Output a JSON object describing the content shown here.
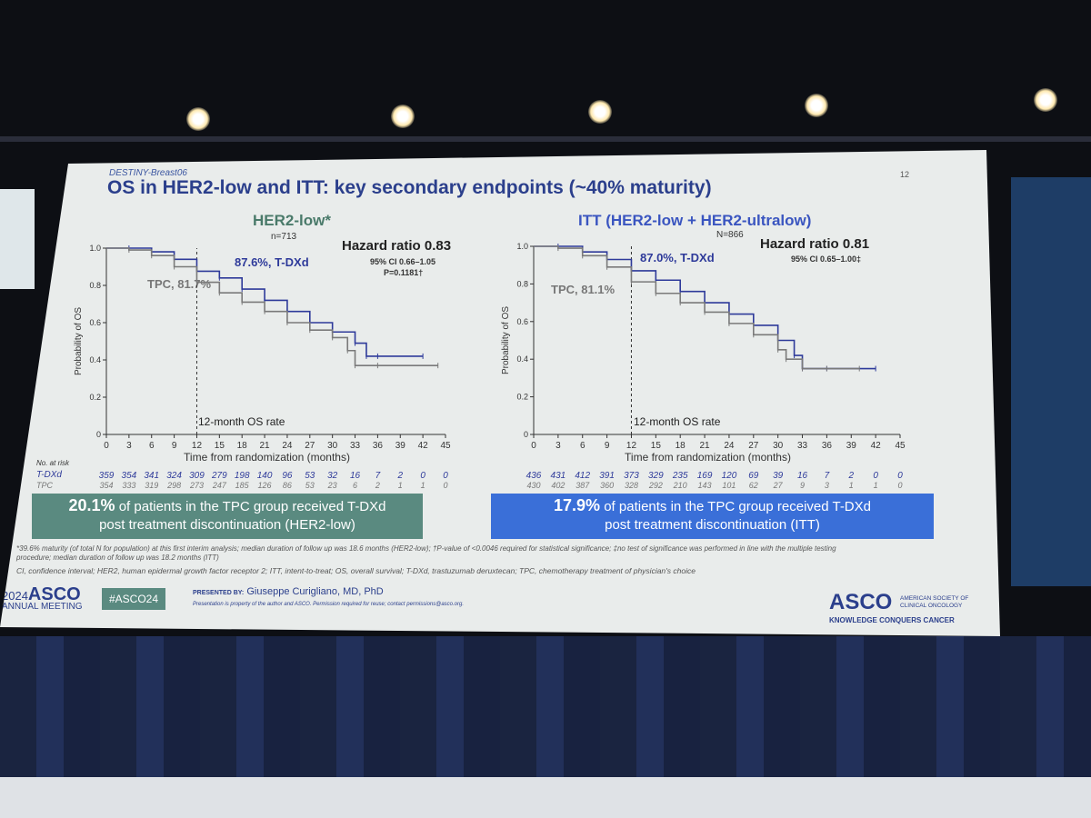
{
  "slide": {
    "logo": "DESTINY-Breast06",
    "page_number": "12",
    "title": "OS in HER2-low and ITT: key secondary endpoints (~40% maturity)",
    "left_panel": {
      "title": "HER2-low*",
      "n": "n=713",
      "hazard_ratio": "Hazard ratio 0.83",
      "ci": "95% CI 0.66–1.05",
      "p": "P=0.1181†",
      "tdxd_label": "87.6%, T-DXd",
      "tpc_label": "TPC, 81.7%",
      "landmark_label": "12-month OS rate",
      "risk_header": "No. at risk",
      "risk_tdxd_label": "T-DXd",
      "risk_tpc_label": "TPC",
      "risk_tdxd": [
        "359",
        "354",
        "341",
        "324",
        "309",
        "279",
        "198",
        "140",
        "96",
        "53",
        "32",
        "16",
        "7",
        "2",
        "0",
        "0"
      ],
      "risk_tpc": [
        "354",
        "333",
        "319",
        "298",
        "273",
        "247",
        "185",
        "126",
        "86",
        "53",
        "23",
        "6",
        "2",
        "1",
        "1",
        "0"
      ],
      "box_pct": "20.1%",
      "box_text1": " of patients in the TPC group received T-DXd",
      "box_text2": "post treatment discontinuation (HER2-low)",
      "box_color": "#5a8a80"
    },
    "right_panel": {
      "title": "ITT (HER2-low + HER2-ultralow)",
      "n": "N=866",
      "hazard_ratio": "Hazard ratio 0.81",
      "ci": "95% CI 0.65–1.00‡",
      "tdxd_label": "87.0%, T-DXd",
      "tpc_label": "TPC, 81.1%",
      "landmark_label": "12-month OS rate",
      "risk_tdxd": [
        "436",
        "431",
        "412",
        "391",
        "373",
        "329",
        "235",
        "169",
        "120",
        "69",
        "39",
        "16",
        "7",
        "2",
        "0",
        "0"
      ],
      "risk_tpc": [
        "430",
        "402",
        "387",
        "360",
        "328",
        "292",
        "210",
        "143",
        "101",
        "62",
        "27",
        "9",
        "3",
        "1",
        "1",
        "0"
      ],
      "box_pct": "17.9%",
      "box_text1": " of patients in the TPC group received T-DXd",
      "box_text2": "post treatment discontinuation (ITT)",
      "box_color": "#3a6fd8"
    },
    "footnote1": "*39.6% maturity (of total N for population) at this first interim analysis; median duration of follow up was 18.6 months (HER2-low); †P-value of <0.0046 required for statistical significance; ‡no test of significance was performed in line with the multiple testing",
    "footnote2": "procedure; median duration of follow up was 18.2 months (ITT)",
    "footnote3": "CI, confidence interval; HER2, human epidermal growth factor receptor 2; ITT, intent-to-treat; OS, overall survival; T-DXd, trastuzumab deruxtecan; TPC, chemotherapy treatment of physician's choice",
    "meeting_year": "2024",
    "meeting_name": "ASCO",
    "meeting_sub": "ANNUAL MEETING",
    "hashtag": "#ASCO24",
    "presented_by_label": "PRESENTED BY:",
    "presenter": "Giuseppe Curigliano, MD, PhD",
    "disclaimer": "Presentation is property of the author and ASCO. Permission required for reuse; contact permissions@asco.org.",
    "asco_logo": "ASCO",
    "asco_full": "AMERICAN SOCIETY OF CLINICAL ONCOLOGY",
    "asco_tagline": "KNOWLEDGE CONQUERS CANCER"
  },
  "chart_data": [
    {
      "type": "line",
      "title": "HER2-low*",
      "xlabel": "Time from randomization (months)",
      "ylabel": "Probability of OS",
      "xlim": [
        0,
        45
      ],
      "ylim": [
        0,
        1
      ],
      "xticks": [
        0,
        3,
        6,
        9,
        12,
        15,
        18,
        21,
        24,
        27,
        30,
        33,
        36,
        39,
        42,
        45
      ],
      "yticks": [
        "0",
        "0.2",
        "0.4",
        "0.6",
        "0.8",
        "1.0"
      ],
      "landmark_x": 12,
      "series": [
        {
          "name": "T-DXd",
          "color": "#2e3a9a",
          "x": [
            0,
            3,
            6,
            9,
            12,
            15,
            18,
            21,
            24,
            27,
            30,
            33,
            34.5,
            36,
            42
          ],
          "y": [
            1,
            1,
            0.98,
            0.94,
            0.876,
            0.84,
            0.78,
            0.72,
            0.66,
            0.6,
            0.55,
            0.49,
            0.42,
            0.42,
            0.42
          ]
        },
        {
          "name": "TPC",
          "color": "#7a7a7a",
          "x": [
            0,
            3,
            6,
            9,
            12,
            15,
            18,
            21,
            24,
            27,
            30,
            32,
            33,
            36,
            44
          ],
          "y": [
            1,
            0.99,
            0.96,
            0.9,
            0.817,
            0.76,
            0.71,
            0.66,
            0.6,
            0.56,
            0.52,
            0.45,
            0.37,
            0.37,
            0.37
          ]
        }
      ]
    },
    {
      "type": "line",
      "title": "ITT (HER2-low + HER2-ultralow)",
      "xlabel": "Time from randomization (months)",
      "ylabel": "Probability of OS",
      "xlim": [
        0,
        45
      ],
      "ylim": [
        0,
        1
      ],
      "xticks": [
        0,
        3,
        6,
        9,
        12,
        15,
        18,
        21,
        24,
        27,
        30,
        33,
        36,
        39,
        42,
        45
      ],
      "yticks": [
        "0",
        "0.2",
        "0.4",
        "0.6",
        "0.8",
        "1.0"
      ],
      "landmark_x": 12,
      "series": [
        {
          "name": "T-DXd",
          "color": "#2e3a9a",
          "x": [
            0,
            3,
            6,
            9,
            12,
            15,
            18,
            21,
            24,
            27,
            30,
            32,
            33,
            36,
            42
          ],
          "y": [
            1,
            1,
            0.97,
            0.93,
            0.87,
            0.82,
            0.76,
            0.7,
            0.64,
            0.58,
            0.5,
            0.42,
            0.35,
            0.35,
            0.35
          ]
        },
        {
          "name": "TPC",
          "color": "#7a7a7a",
          "x": [
            0,
            3,
            6,
            9,
            12,
            15,
            18,
            21,
            24,
            27,
            30,
            31,
            33,
            36,
            40
          ],
          "y": [
            1,
            0.99,
            0.95,
            0.89,
            0.811,
            0.75,
            0.7,
            0.65,
            0.59,
            0.53,
            0.45,
            0.4,
            0.35,
            0.35,
            0.35
          ]
        }
      ]
    }
  ]
}
